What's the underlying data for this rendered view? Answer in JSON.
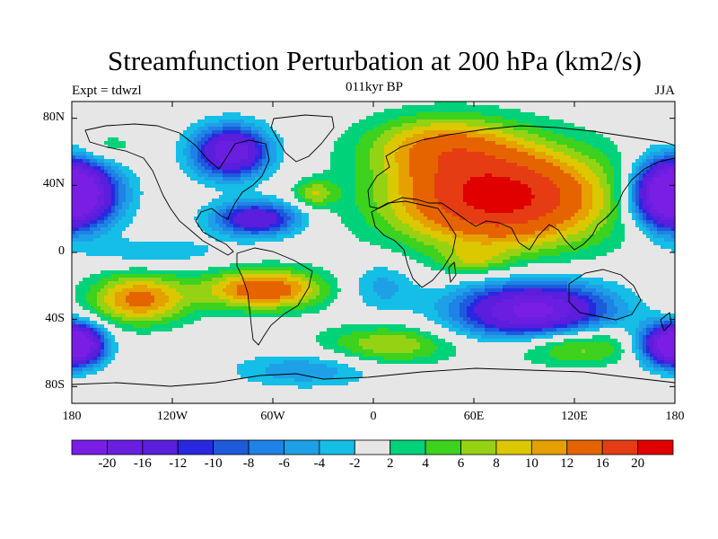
{
  "title": "Streamfunction Perturbation at 200 hPa (km2/s)",
  "left_label": "Expt = tdwzl",
  "center_label": "011kyr BP",
  "right_label": "JJA",
  "map": {
    "lon_ticks": [
      {
        "lon": -180,
        "label": "180"
      },
      {
        "lon": -120,
        "label": "120W"
      },
      {
        "lon": -60,
        "label": "60W"
      },
      {
        "lon": 0,
        "label": "0"
      },
      {
        "lon": 60,
        "label": "60E"
      },
      {
        "lon": 120,
        "label": "120E"
      },
      {
        "lon": 180,
        "label": "180"
      }
    ],
    "lat_ticks": [
      {
        "lat": 80,
        "label": "80N"
      },
      {
        "lat": 40,
        "label": "40N"
      },
      {
        "lat": 0,
        "label": "0"
      },
      {
        "lat": -40,
        "label": "40S"
      },
      {
        "lat": -80,
        "label": "80S"
      }
    ],
    "lon_range": [
      -180,
      180
    ],
    "lat_range": [
      -90,
      90
    ],
    "features": [
      {
        "name": "asia-high",
        "lon": 75,
        "lat": 33,
        "rlon": 65,
        "rlat": 30,
        "amp": 22
      },
      {
        "name": "europe-arctic-high",
        "lon": 40,
        "lat": 65,
        "rlon": 45,
        "rlat": 18,
        "amp": 9
      },
      {
        "name": "north-atlantic-high",
        "lon": -35,
        "lat": 35,
        "rlon": 12,
        "rlat": 8,
        "amp": 7
      },
      {
        "name": "pacific-high-55n",
        "lon": -160,
        "lat": 62,
        "rlon": 20,
        "rlat": 10,
        "amp": 4
      },
      {
        "name": "south-pacific-high",
        "lon": -140,
        "lat": -28,
        "rlon": 30,
        "rlat": 15,
        "amp": 13
      },
      {
        "name": "south-america-high",
        "lon": -65,
        "lat": -22,
        "rlon": 35,
        "rlat": 12,
        "amp": 15
      },
      {
        "name": "southern-ocean-high-w",
        "lon": 10,
        "lat": -55,
        "rlon": 40,
        "rlat": 12,
        "amp": 8
      },
      {
        "name": "southern-ocean-high-e",
        "lon": 120,
        "lat": -55,
        "rlon": 40,
        "rlat": 12,
        "amp": 9
      },
      {
        "name": "arabian-sea-high",
        "lon": 60,
        "lat": -5,
        "rlon": 20,
        "rlat": 8,
        "amp": 5
      },
      {
        "name": "north-america-low",
        "lon": -85,
        "lat": 60,
        "rlon": 22,
        "rlat": 15,
        "amp": -20
      },
      {
        "name": "north-pacific-low",
        "lon": -175,
        "lat": 35,
        "rlon": 25,
        "rlat": 20,
        "amp": -18
      },
      {
        "name": "west-pacific-low",
        "lon": 175,
        "lat": 35,
        "rlon": 20,
        "rlat": 20,
        "amp": -18
      },
      {
        "name": "caribbean-low",
        "lon": -70,
        "lat": 20,
        "rlon": 25,
        "rlat": 10,
        "amp": -16
      },
      {
        "name": "indian-ocean-low",
        "lon": 95,
        "lat": -35,
        "rlon": 45,
        "rlat": 17,
        "amp": -22
      },
      {
        "name": "south-pacific-low-e",
        "lon": 175,
        "lat": -55,
        "rlon": 18,
        "rlat": 12,
        "amp": -18
      },
      {
        "name": "south-pacific-low-w",
        "lon": -175,
        "lat": -55,
        "rlon": 15,
        "rlat": 12,
        "amp": -16
      },
      {
        "name": "south-atlantic-low",
        "lon": -40,
        "lat": -70,
        "rlon": 40,
        "rlat": 10,
        "amp": -6
      },
      {
        "name": "africa-atlantic-low",
        "lon": 5,
        "lat": -20,
        "rlon": 20,
        "rlat": 15,
        "amp": -5
      },
      {
        "name": "pacific-equatorial-low",
        "lon": -130,
        "lat": 0,
        "rlon": 40,
        "rlat": 8,
        "amp": -4
      }
    ]
  },
  "colorbar": {
    "colors": [
      "#7a1ee6",
      "#6a1ee0",
      "#5a1edc",
      "#2828e0",
      "#1e5adc",
      "#1e82e6",
      "#1ea0e6",
      "#14bee6",
      "#e6e6e6",
      "#00d27a",
      "#3cd21e",
      "#96d214",
      "#dcc800",
      "#e6a000",
      "#e66400",
      "#e63c14",
      "#e00000"
    ],
    "labels": [
      "-20",
      "-16",
      "-12",
      "-10",
      "-8",
      "-6",
      "-4",
      "-2",
      "2",
      "4",
      "6",
      "8",
      "10",
      "12",
      "16",
      "20"
    ],
    "levels": [
      -20,
      -16,
      -12,
      -10,
      -8,
      -6,
      -4,
      -2,
      2,
      4,
      6,
      8,
      10,
      12,
      16,
      20
    ]
  }
}
